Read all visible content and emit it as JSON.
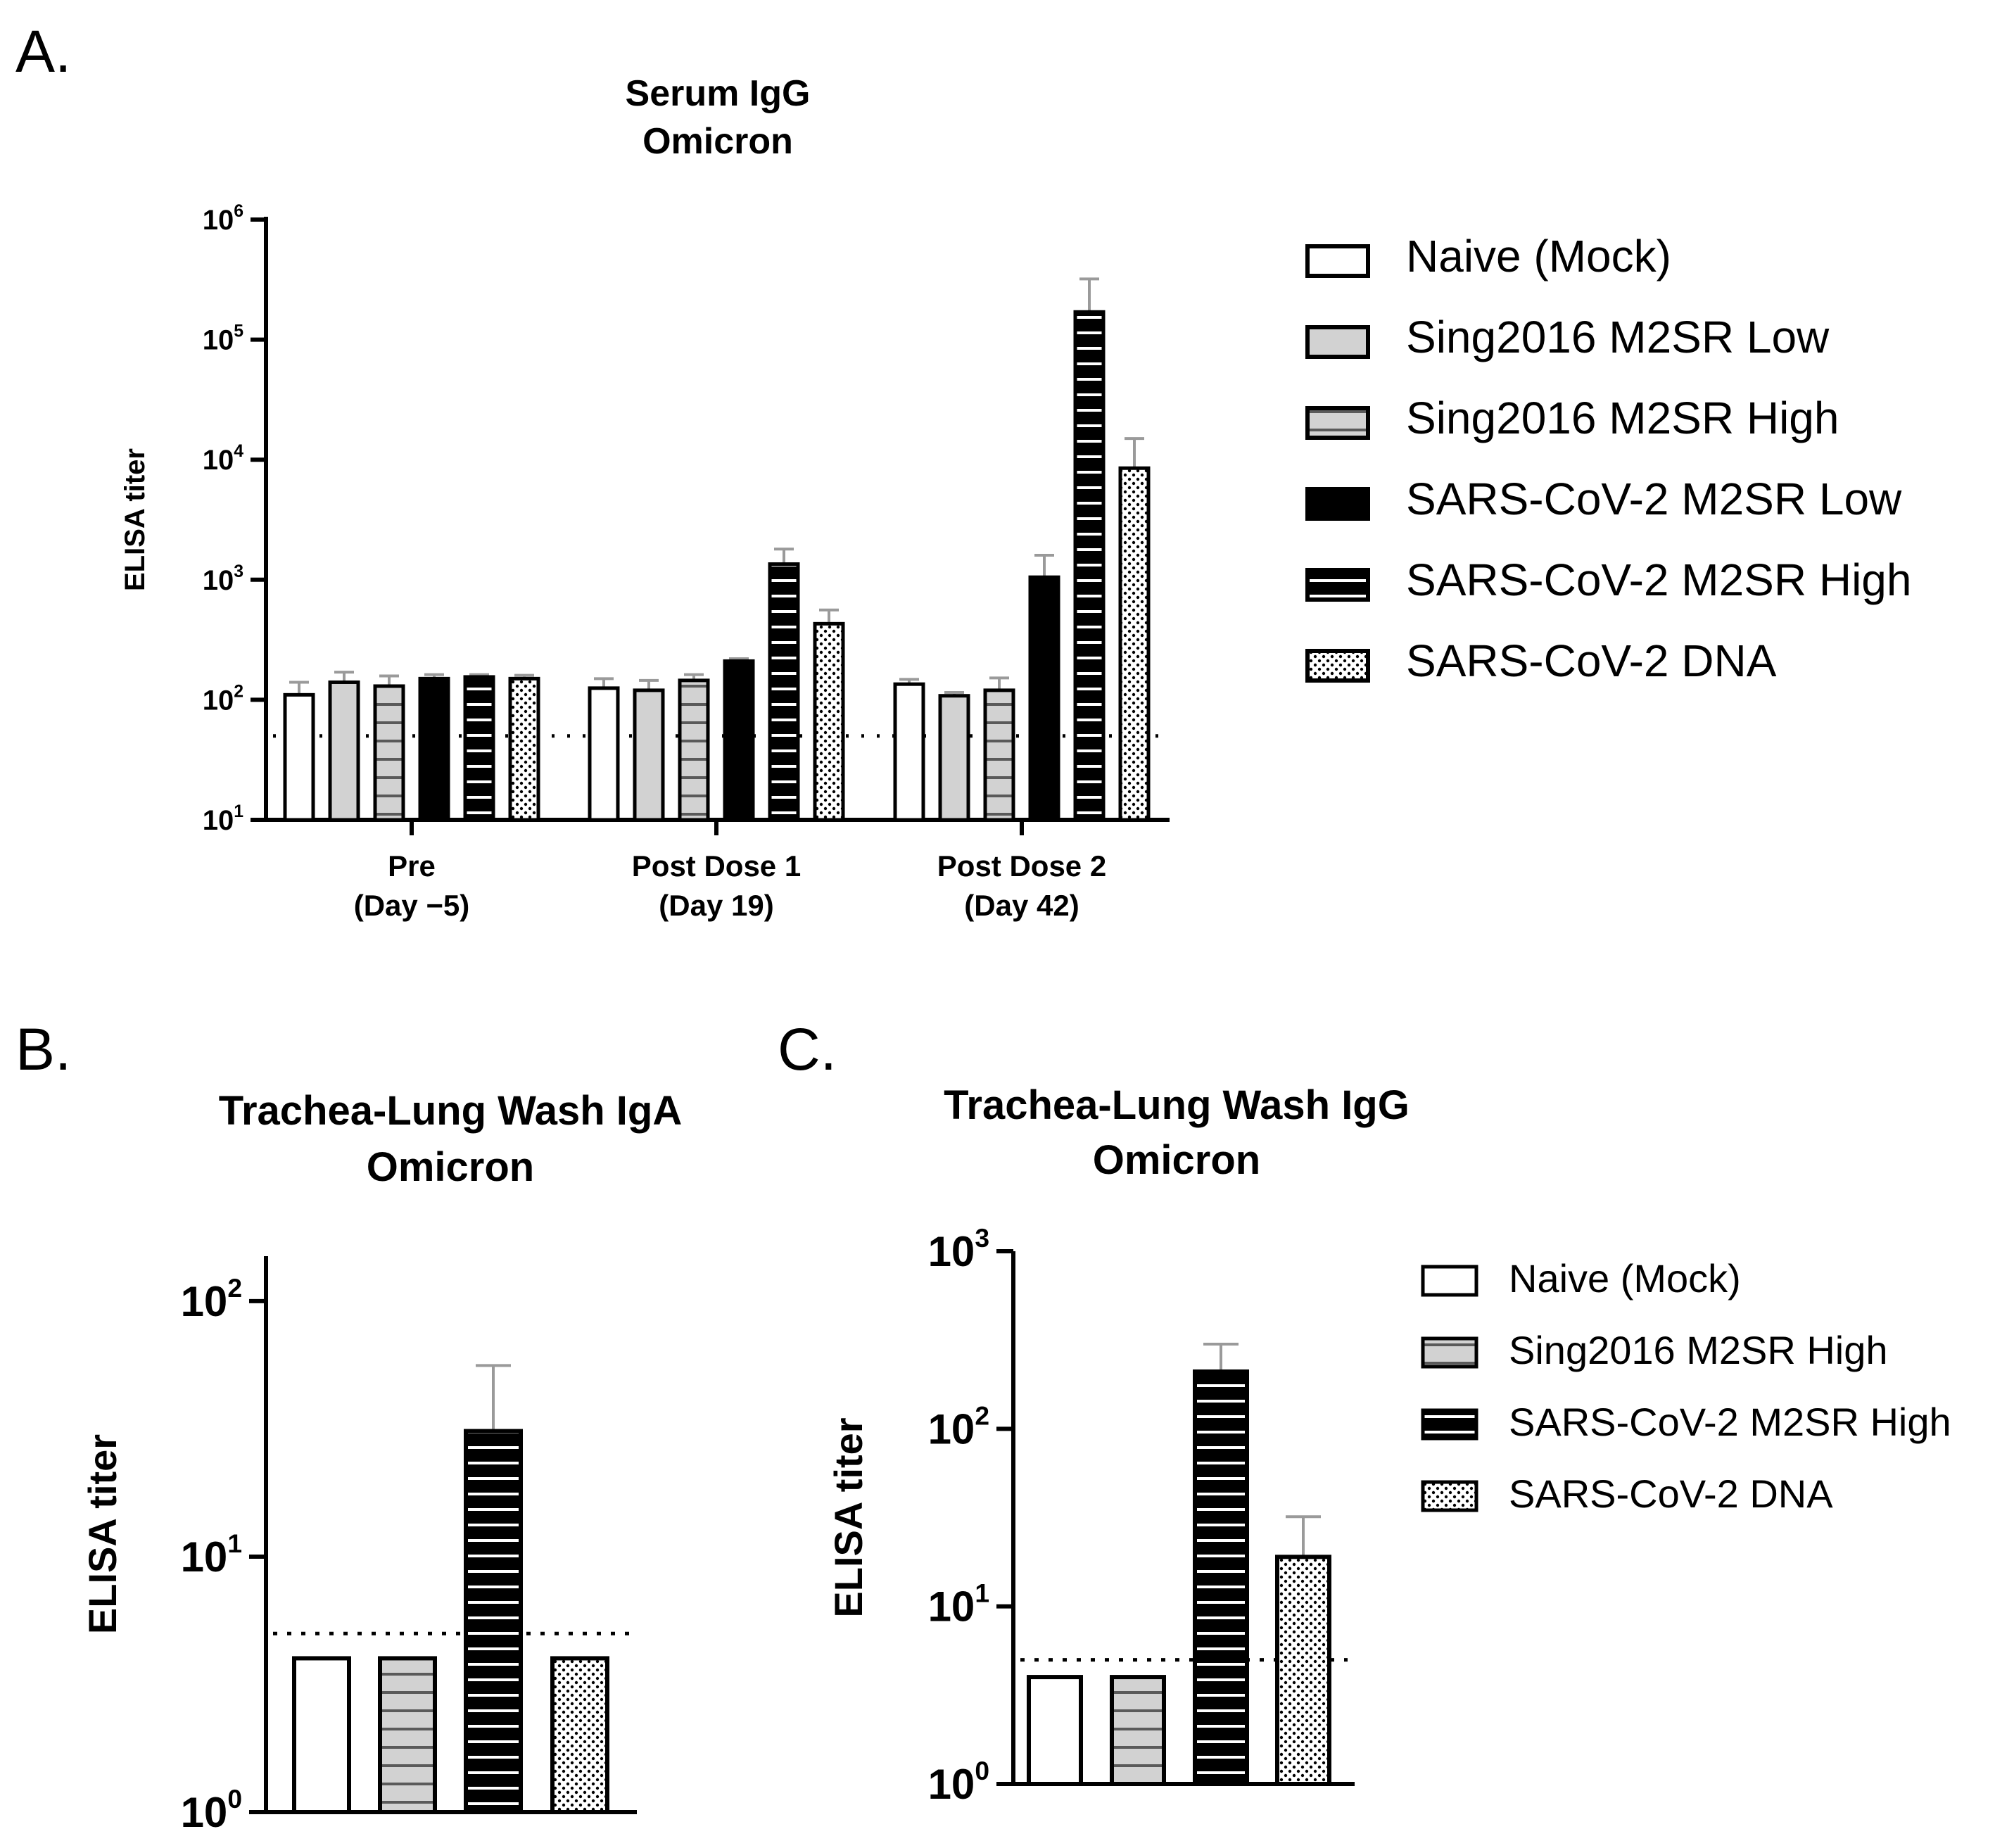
{
  "panels": {
    "A": "A.",
    "B": "B.",
    "C": "C."
  },
  "colors": {
    "gray_fill": "#d2d2d2",
    "black": "#000000",
    "white": "#ffffff",
    "error_bar": "#9a9a9a"
  },
  "chart_data": [
    {
      "id": "A",
      "type": "bar",
      "title": [
        "Serum IgG",
        "Omicron"
      ],
      "ylabel": "ELISA titer",
      "yscale": "log",
      "ylim": [
        10,
        1000000
      ],
      "yticks": [
        10,
        100,
        1000,
        10000,
        100000,
        1000000
      ],
      "ytick_base": "10",
      "ytick_exponents": [
        "1",
        "2",
        "3",
        "4",
        "5",
        "6"
      ],
      "categories": [
        [
          "Pre",
          "(Day −5)"
        ],
        [
          "Post Dose 1",
          "(Day 19)"
        ],
        [
          "Post Dose 2",
          "(Day 42)"
        ]
      ],
      "detection_limit": 50,
      "legend_position": "right",
      "series": [
        {
          "name": "Naive (Mock)",
          "pattern": "white",
          "values": [
            110,
            125,
            135
          ],
          "errors": [
            140,
            150,
            148
          ]
        },
        {
          "name": "Sing2016 M2SR Low",
          "pattern": "gray",
          "values": [
            140,
            120,
            108
          ],
          "errors": [
            170,
            145,
            115
          ]
        },
        {
          "name": "Sing2016 M2SR High",
          "pattern": "gray-hstripe",
          "values": [
            130,
            145,
            120
          ],
          "errors": [
            158,
            162,
            152
          ]
        },
        {
          "name": "SARS-CoV-2 M2SR Low",
          "pattern": "black",
          "values": [
            150,
            210,
            1050
          ],
          "errors": [
            162,
            220,
            1600
          ]
        },
        {
          "name": "SARS-CoV-2 M2SR High",
          "pattern": "black-hstripe",
          "values": [
            155,
            1350,
            170000
          ],
          "errors": [
            162,
            1800,
            320000
          ]
        },
        {
          "name": "SARS-CoV-2 DNA",
          "pattern": "dots",
          "values": [
            150,
            430,
            8500
          ],
          "errors": [
            160,
            560,
            15000
          ]
        }
      ]
    },
    {
      "id": "B",
      "type": "bar",
      "title": [
        "Trachea-Lung Wash IgA",
        "Omicron"
      ],
      "ylabel": "ELISA titer",
      "yscale": "log",
      "ylim": [
        1,
        150
      ],
      "yticks": [
        1,
        10,
        100
      ],
      "ytick_base": "10",
      "ytick_exponents": [
        "0",
        "1",
        "2"
      ],
      "detection_limit": 5,
      "series": [
        {
          "pattern": "white",
          "value": 4,
          "error": null
        },
        {
          "pattern": "gray-hstripe",
          "value": 4,
          "error": null
        },
        {
          "pattern": "black-hstripe",
          "value": 31,
          "error": 56
        },
        {
          "pattern": "dots",
          "value": 4,
          "error": null
        }
      ]
    },
    {
      "id": "C",
      "type": "bar",
      "title": [
        "Trachea-Lung Wash IgG",
        "Omicron"
      ],
      "ylabel": "ELISA titer",
      "yscale": "log",
      "ylim": [
        1,
        1000
      ],
      "yticks": [
        1,
        10,
        100,
        1000
      ],
      "ytick_base": "10",
      "ytick_exponents": [
        "0",
        "1",
        "2",
        "3"
      ],
      "detection_limit": 5,
      "legend_position": "right",
      "series": [
        {
          "name": "Naive (Mock)",
          "pattern": "white",
          "value": 4,
          "error": null
        },
        {
          "name": "Sing2016 M2SR High",
          "pattern": "gray-hstripe",
          "value": 4,
          "error": null
        },
        {
          "name": "SARS-CoV-2 M2SR High",
          "pattern": "black-hstripe",
          "value": 210,
          "error": 300
        },
        {
          "name": "SARS-CoV-2 DNA",
          "pattern": "dots",
          "value": 19,
          "error": 32
        }
      ]
    }
  ]
}
